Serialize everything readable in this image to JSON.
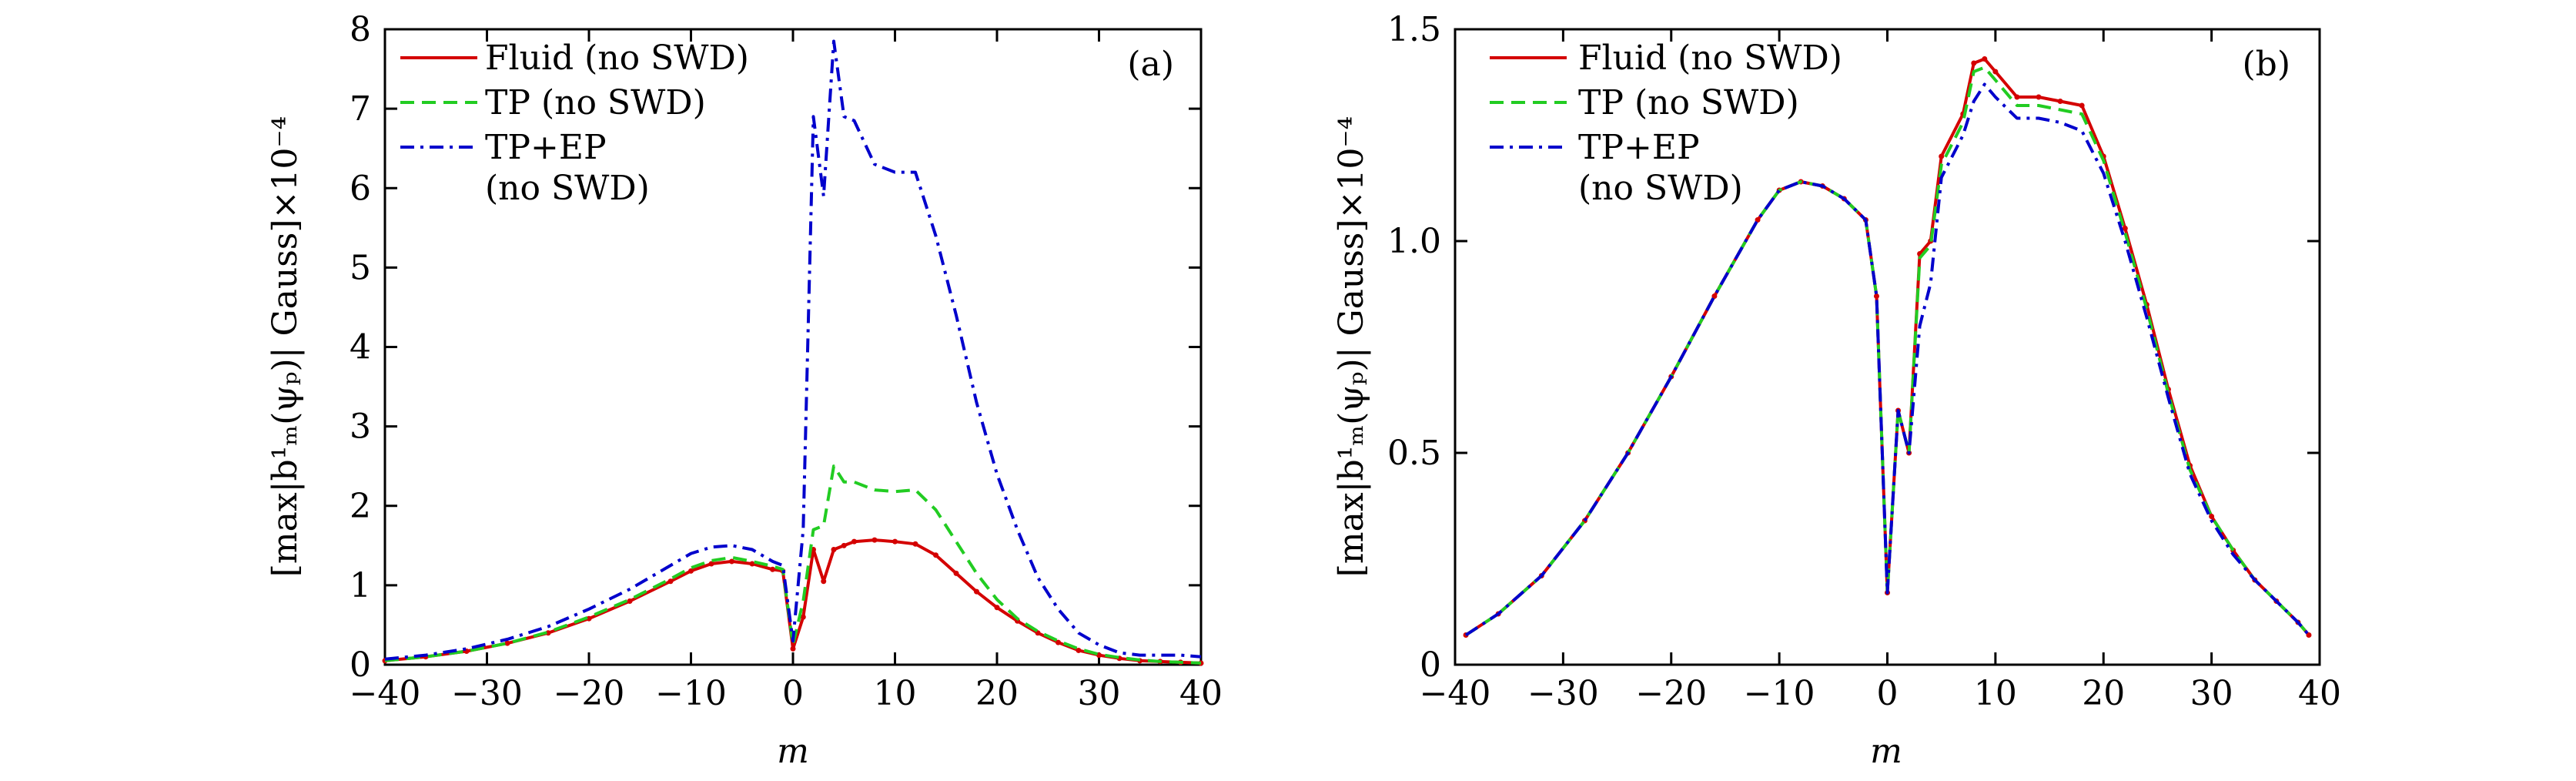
{
  "colors": {
    "fluid": "#d40000",
    "tp": "#22cc22",
    "tpep": "#0000cc"
  },
  "chart_data": [
    {
      "type": "line",
      "panel_label": "(a)",
      "xlabel": "m",
      "ylabel": "[max|b¹ₘ(ψₚ)| Gauss]×10⁻⁴",
      "xlim": [
        -40,
        40
      ],
      "ylim": [
        0,
        8
      ],
      "xticks": [
        -40,
        -30,
        -20,
        -10,
        0,
        10,
        20,
        30,
        40
      ],
      "xtick_labels": [
        "−40",
        "−30",
        "−20",
        "−10",
        "0",
        "10",
        "20",
        "30",
        "40"
      ],
      "yticks": [
        0,
        1,
        2,
        3,
        4,
        5,
        6,
        7,
        8
      ],
      "ytick_labels": [
        "0",
        "1",
        "2",
        "3",
        "4",
        "5",
        "6",
        "7",
        "8"
      ],
      "legend": [
        "Fluid (no SWD)",
        "TP (no SWD)",
        "TP+EP",
        "(no SWD)"
      ],
      "series": [
        {
          "name": "Fluid (no SWD)",
          "style": "solid",
          "x": [
            -40,
            -36,
            -32,
            -28,
            -24,
            -20,
            -16,
            -12,
            -10,
            -8,
            -6,
            -4,
            -2,
            -1,
            0,
            1,
            2,
            3,
            4,
            5,
            6,
            8,
            10,
            12,
            14,
            16,
            18,
            20,
            22,
            24,
            26,
            28,
            30,
            32,
            34,
            36,
            38,
            40
          ],
          "y": [
            0.05,
            0.1,
            0.17,
            0.27,
            0.4,
            0.58,
            0.8,
            1.05,
            1.18,
            1.27,
            1.3,
            1.27,
            1.2,
            1.18,
            0.2,
            0.6,
            1.45,
            1.05,
            1.45,
            1.5,
            1.55,
            1.57,
            1.55,
            1.52,
            1.38,
            1.15,
            0.92,
            0.72,
            0.55,
            0.4,
            0.28,
            0.18,
            0.12,
            0.08,
            0.05,
            0.04,
            0.03,
            0.02
          ]
        },
        {
          "name": "TP (no SWD)",
          "style": "dashed",
          "x": [
            -40,
            -36,
            -32,
            -28,
            -24,
            -20,
            -16,
            -12,
            -10,
            -8,
            -6,
            -4,
            -2,
            -1,
            0,
            1,
            2,
            3,
            4,
            5,
            6,
            8,
            10,
            12,
            14,
            16,
            18,
            20,
            22,
            24,
            26,
            28,
            30,
            32,
            34,
            36,
            38,
            40
          ],
          "y": [
            0.05,
            0.1,
            0.17,
            0.27,
            0.41,
            0.6,
            0.82,
            1.08,
            1.22,
            1.31,
            1.35,
            1.3,
            1.24,
            1.2,
            0.25,
            0.8,
            1.7,
            1.75,
            2.5,
            2.3,
            2.3,
            2.2,
            2.18,
            2.2,
            1.95,
            1.55,
            1.15,
            0.82,
            0.58,
            0.42,
            0.3,
            0.2,
            0.13,
            0.09,
            0.06,
            0.04,
            0.03,
            0.02
          ]
        },
        {
          "name": "TP+EP (no SWD)",
          "style": "dashdot",
          "x": [
            -40,
            -36,
            -32,
            -28,
            -24,
            -20,
            -16,
            -12,
            -10,
            -8,
            -6,
            -4,
            -2,
            -1,
            0,
            1,
            2,
            3,
            4,
            5,
            6,
            8,
            10,
            12,
            14,
            16,
            18,
            20,
            22,
            24,
            26,
            28,
            30,
            32,
            34,
            36,
            38,
            40
          ],
          "y": [
            0.07,
            0.12,
            0.2,
            0.32,
            0.48,
            0.7,
            0.95,
            1.25,
            1.4,
            1.48,
            1.5,
            1.45,
            1.3,
            1.25,
            0.3,
            1.7,
            6.9,
            5.9,
            7.85,
            6.9,
            6.85,
            6.3,
            6.2,
            6.2,
            5.4,
            4.4,
            3.3,
            2.4,
            1.7,
            1.1,
            0.7,
            0.4,
            0.25,
            0.15,
            0.12,
            0.12,
            0.12,
            0.1
          ]
        }
      ]
    },
    {
      "type": "line",
      "panel_label": "(b)",
      "xlabel": "m",
      "ylabel": "[max|b¹ₘ(ψₚ)| Gauss]×10⁻⁴",
      "xlim": [
        -40,
        40
      ],
      "ylim": [
        0,
        1.5
      ],
      "xticks": [
        -40,
        -30,
        -20,
        -10,
        0,
        10,
        20,
        30,
        40
      ],
      "xtick_labels": [
        "−40",
        "−30",
        "−20",
        "−10",
        "0",
        "10",
        "20",
        "30",
        "40"
      ],
      "yticks": [
        0,
        0.5,
        1.0,
        1.5
      ],
      "ytick_labels": [
        "0",
        "0.5",
        "1.0",
        "1.5"
      ],
      "legend": [
        "Fluid (no SWD)",
        "TP (no SWD)",
        "TP+EP",
        "(no SWD)"
      ],
      "series": [
        {
          "name": "Fluid (no SWD)",
          "style": "solid",
          "x": [
            -39,
            -36,
            -32,
            -28,
            -24,
            -20,
            -16,
            -12,
            -10,
            -8,
            -6,
            -4,
            -2,
            -1,
            0,
            1,
            2,
            3,
            4,
            5,
            7,
            8,
            9,
            10,
            12,
            14,
            16,
            18,
            20,
            22,
            24,
            26,
            28,
            30,
            32,
            34,
            36,
            38,
            39
          ],
          "y": [
            0.07,
            0.12,
            0.21,
            0.34,
            0.5,
            0.68,
            0.87,
            1.05,
            1.12,
            1.14,
            1.13,
            1.1,
            1.05,
            0.87,
            0.17,
            0.6,
            0.5,
            0.97,
            1.0,
            1.2,
            1.3,
            1.42,
            1.43,
            1.4,
            1.34,
            1.34,
            1.33,
            1.32,
            1.2,
            1.03,
            0.85,
            0.65,
            0.47,
            0.35,
            0.27,
            0.2,
            0.15,
            0.1,
            0.07
          ]
        },
        {
          "name": "TP (no SWD)",
          "style": "dashed",
          "x": [
            -39,
            -36,
            -32,
            -28,
            -24,
            -20,
            -16,
            -12,
            -10,
            -8,
            -6,
            -4,
            -2,
            -1,
            0,
            1,
            2,
            3,
            4,
            5,
            7,
            8,
            9,
            10,
            12,
            14,
            16,
            18,
            20,
            22,
            24,
            26,
            28,
            30,
            32,
            34,
            36,
            38,
            39
          ],
          "y": [
            0.07,
            0.12,
            0.21,
            0.34,
            0.5,
            0.68,
            0.87,
            1.05,
            1.12,
            1.14,
            1.13,
            1.1,
            1.05,
            0.87,
            0.17,
            0.6,
            0.5,
            0.96,
            0.99,
            1.18,
            1.28,
            1.4,
            1.41,
            1.38,
            1.32,
            1.32,
            1.31,
            1.3,
            1.19,
            1.02,
            0.84,
            0.64,
            0.46,
            0.35,
            0.27,
            0.2,
            0.15,
            0.1,
            0.07
          ]
        },
        {
          "name": "TP+EP (no SWD)",
          "style": "dashdot",
          "x": [
            -39,
            -36,
            -32,
            -28,
            -24,
            -20,
            -16,
            -12,
            -10,
            -8,
            -6,
            -4,
            -2,
            -1,
            0,
            1,
            2,
            3,
            4,
            5,
            7,
            8,
            9,
            10,
            12,
            14,
            16,
            18,
            20,
            22,
            24,
            26,
            28,
            30,
            32,
            34,
            36,
            38,
            39
          ],
          "y": [
            0.07,
            0.12,
            0.21,
            0.34,
            0.5,
            0.68,
            0.87,
            1.05,
            1.12,
            1.14,
            1.13,
            1.1,
            1.05,
            0.87,
            0.17,
            0.6,
            0.5,
            0.8,
            0.9,
            1.15,
            1.25,
            1.33,
            1.37,
            1.34,
            1.29,
            1.29,
            1.28,
            1.26,
            1.16,
            1.0,
            0.82,
            0.63,
            0.45,
            0.34,
            0.26,
            0.2,
            0.15,
            0.1,
            0.07
          ]
        }
      ]
    }
  ]
}
